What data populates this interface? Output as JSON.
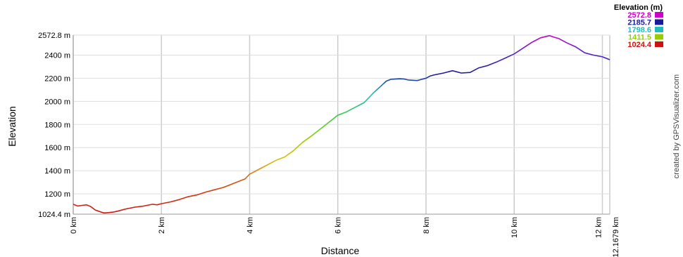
{
  "chart_data": {
    "type": "line",
    "xlabel": "Distance",
    "ylabel": "Elevation",
    "credit": "created by GPSVisualizer.com",
    "xlim": [
      0,
      12.1679
    ],
    "ylim": [
      1024.4,
      2572.8
    ],
    "x_ticks": [
      {
        "value": 0,
        "label": "0 km"
      },
      {
        "value": 2,
        "label": "2 km"
      },
      {
        "value": 4,
        "label": "4 km"
      },
      {
        "value": 6,
        "label": "6 km"
      },
      {
        "value": 8,
        "label": "8 km"
      },
      {
        "value": 10,
        "label": "10 km"
      },
      {
        "value": 12,
        "label": "12 km"
      },
      {
        "value": 12.1679,
        "label": "12.1679 km"
      }
    ],
    "y_ticks": [
      {
        "value": 1024.4,
        "label": "1024.4 m"
      },
      {
        "value": 1200,
        "label": "1200 m"
      },
      {
        "value": 1400,
        "label": "1400 m"
      },
      {
        "value": 1600,
        "label": "1600 m"
      },
      {
        "value": 1800,
        "label": "1800 m"
      },
      {
        "value": 2000,
        "label": "2000 m"
      },
      {
        "value": 2200,
        "label": "2200 m"
      },
      {
        "value": 2400,
        "label": "2400 m"
      },
      {
        "value": 2572.8,
        "label": "2572.8 m"
      }
    ],
    "legend": {
      "title": "Elevation (m)",
      "entries": [
        {
          "label": "2572.8",
          "color": "#cc00cc"
        },
        {
          "label": "2185.7",
          "color": "#1a1a99"
        },
        {
          "label": "1798.6",
          "color": "#22bbbb"
        },
        {
          "label": "1411.5",
          "color": "#99cc00"
        },
        {
          "label": "1024.4",
          "color": "#cc1111"
        }
      ]
    },
    "grid": true,
    "series": [
      {
        "x": [
          0,
          0.1,
          0.2,
          0.3,
          0.4,
          0.5,
          0.65,
          0.7,
          0.8,
          0.9,
          1.0,
          1.2,
          1.4,
          1.6,
          1.8,
          1.9,
          2.0,
          2.2,
          2.4,
          2.6,
          2.8,
          3.0,
          3.2,
          3.4,
          3.5,
          3.6,
          3.8,
          3.9,
          4.0,
          4.2,
          4.4,
          4.6,
          4.8,
          5.0,
          5.2,
          5.4,
          5.6,
          5.8,
          6.0,
          6.2,
          6.4,
          6.6,
          6.8,
          7.0,
          7.1,
          7.2,
          7.4,
          7.5,
          7.6,
          7.8,
          8.0,
          8.1,
          8.2,
          8.4,
          8.6,
          8.8,
          9.0,
          9.2,
          9.4,
          9.6,
          9.8,
          10.0,
          10.2,
          10.4,
          10.6,
          10.8,
          10.9,
          11.0,
          11.2,
          11.4,
          11.6,
          11.8,
          12.0,
          12.1679
        ],
        "y": [
          1110,
          1095,
          1100,
          1105,
          1090,
          1060,
          1040,
          1035,
          1038,
          1042,
          1050,
          1070,
          1085,
          1095,
          1110,
          1105,
          1115,
          1130,
          1150,
          1175,
          1190,
          1215,
          1235,
          1255,
          1270,
          1285,
          1315,
          1330,
          1370,
          1410,
          1450,
          1490,
          1520,
          1575,
          1645,
          1700,
          1760,
          1820,
          1880,
          1910,
          1950,
          1990,
          2070,
          2140,
          2175,
          2190,
          2195,
          2193,
          2185,
          2180,
          2200,
          2220,
          2230,
          2245,
          2265,
          2245,
          2250,
          2290,
          2310,
          2340,
          2375,
          2410,
          2460,
          2510,
          2550,
          2568,
          2555,
          2545,
          2505,
          2470,
          2420,
          2400,
          2385,
          2360
        ]
      }
    ]
  }
}
